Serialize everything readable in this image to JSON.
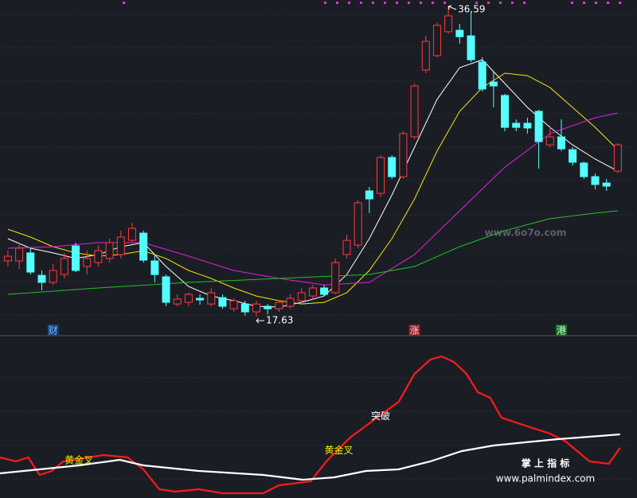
{
  "chart_data": [
    {
      "type": "candlestick",
      "xlim": [
        -0.7,
        55.7
      ],
      "ylim": [
        16.57,
        36.98
      ],
      "up_color": "#ff3b3b",
      "down_color": "#54ffff",
      "open": [
        21.04,
        21.04,
        21.53,
        20.16,
        19.73,
        20.21,
        21.96,
        20.7,
        20.94,
        21.19,
        21.43,
        22.3,
        22.74,
        21.04,
        20.07,
        18.41,
        18.51,
        18.76,
        18.41,
        18.8,
        18.12,
        18.41,
        17.93,
        18.27,
        18.12,
        18.27,
        18.61,
        18.9,
        19.39,
        19.1,
        21.43,
        22.01,
        25.32,
        25.17,
        27.36,
        26.19,
        28.62,
        32.7,
        33.58,
        35.04,
        35.13,
        34.79,
        33.19,
        31.97,
        31.15,
        29.45,
        29.45,
        30.18,
        28.13,
        28.62,
        27.84,
        27.02,
        26.19,
        25.8,
        26.53
      ],
      "high": [
        21.67,
        22.16,
        21.82,
        20.46,
        20.85,
        21.53,
        22.16,
        21.67,
        22.01,
        22.4,
        22.89,
        23.37,
        22.89,
        21.43,
        20.21,
        19.0,
        19.1,
        19.0,
        19.39,
        19.0,
        18.76,
        18.61,
        18.61,
        18.41,
        18.66,
        19.0,
        19.39,
        19.58,
        19.58,
        21.19,
        22.64,
        24.73,
        25.56,
        27.5,
        27.5,
        28.96,
        31.88,
        34.79,
        35.62,
        36.59,
        35.52,
        36.25,
        33.48,
        32.61,
        31.25,
        29.69,
        29.79,
        30.27,
        29.3,
        29.69,
        27.99,
        27.11,
        26.39,
        26.05,
        28.23
      ],
      "low": [
        20.7,
        20.55,
        20.21,
        19.24,
        19.58,
        19.97,
        20.36,
        20.21,
        20.7,
        20.94,
        21.19,
        22.16,
        20.94,
        19.73,
        18.27,
        18.27,
        18.27,
        18.37,
        18.27,
        18.12,
        17.93,
        17.69,
        17.63,
        17.78,
        17.93,
        18.12,
        18.41,
        18.71,
        18.9,
        19.0,
        21.19,
        21.82,
        23.96,
        24.93,
        26.05,
        26.05,
        28.48,
        32.51,
        33.48,
        34.94,
        34.31,
        33.19,
        31.39,
        30.42,
        28.96,
        28.96,
        28.82,
        26.68,
        27.99,
        27.75,
        26.87,
        26.05,
        25.41,
        25.32,
        26.39
      ],
      "close": [
        21.33,
        21.82,
        20.36,
        19.73,
        20.46,
        21.19,
        20.46,
        21.19,
        21.67,
        22.16,
        22.5,
        23.03,
        21.09,
        20.21,
        18.51,
        18.71,
        19.0,
        18.66,
        19.1,
        18.27,
        18.61,
        17.93,
        18.41,
        18.12,
        18.51,
        18.76,
        19.1,
        19.39,
        19.0,
        20.94,
        22.3,
        24.59,
        24.83,
        27.36,
        26.19,
        28.82,
        31.73,
        34.45,
        35.43,
        36.01,
        34.74,
        33.33,
        31.54,
        31.73,
        29.2,
        29.2,
        29.16,
        28.33,
        28.62,
        27.89,
        27.07,
        26.19,
        25.71,
        25.61,
        28.13
      ],
      "events": [
        null,
        null,
        null,
        null,
        {
          "label": "财",
          "color": "#6fb7ff",
          "bg": "#1d3f6e"
        },
        null,
        null,
        null,
        null,
        null,
        null,
        null,
        null,
        null,
        null,
        null,
        null,
        null,
        null,
        null,
        null,
        null,
        null,
        null,
        null,
        null,
        null,
        null,
        null,
        null,
        null,
        null,
        null,
        null,
        null,
        null,
        {
          "label": "涨",
          "color": "#ffd0d0",
          "bg": "#8a1f2a"
        },
        null,
        null,
        null,
        null,
        null,
        null,
        null,
        null,
        null,
        null,
        null,
        null,
        {
          "label": "港",
          "color": "#c8ffc8",
          "bg": "#1d6e2a"
        },
        null,
        null,
        null,
        null,
        null
      ],
      "moving_averages": [
        {
          "color": "#ffffff",
          "x": [
            0,
            2,
            4,
            6,
            8,
            10,
            12,
            14,
            16,
            18,
            20,
            22,
            24,
            26,
            28,
            30,
            32,
            34,
            36,
            38,
            40,
            42,
            44,
            46,
            48,
            50,
            52,
            54
          ],
          "values": [
            22.4,
            21.82,
            21.53,
            21.19,
            21.43,
            21.91,
            22.16,
            20.7,
            19.48,
            18.9,
            18.61,
            18.27,
            18.22,
            18.51,
            18.9,
            20.21,
            22.4,
            25.07,
            27.99,
            30.91,
            32.85,
            33.33,
            31.88,
            30.42,
            29.2,
            28.13,
            27.26,
            26.53
          ]
        },
        {
          "color": "#f2e600",
          "x": [
            0,
            2,
            4,
            6,
            8,
            10,
            12,
            14,
            16,
            18,
            20,
            22,
            24,
            26,
            28,
            30,
            32,
            34,
            36,
            38,
            40,
            42,
            44,
            46,
            48,
            50,
            52,
            54
          ],
          "values": [
            22.98,
            22.5,
            21.91,
            21.53,
            21.33,
            21.43,
            21.67,
            21.19,
            20.46,
            19.97,
            19.39,
            18.9,
            18.61,
            18.41,
            18.51,
            19.1,
            20.46,
            22.4,
            24.83,
            27.75,
            30.18,
            31.63,
            32.51,
            32.36,
            31.63,
            30.42,
            29.2,
            27.84
          ]
        },
        {
          "color": "#e020e0",
          "x": [
            0,
            4,
            8,
            12,
            16,
            20,
            24,
            28,
            32,
            36,
            40,
            44,
            48,
            52,
            54
          ],
          "values": [
            21.82,
            21.91,
            22.16,
            22.16,
            21.33,
            20.46,
            19.97,
            19.58,
            19.73,
            21.43,
            24.1,
            26.77,
            28.82,
            29.79,
            30.08
          ]
        },
        {
          "color": "#22c022",
          "x": [
            0,
            8,
            16,
            24,
            32,
            36,
            40,
            44,
            48,
            52,
            54
          ],
          "values": [
            19.0,
            19.39,
            19.73,
            19.97,
            20.21,
            20.7,
            21.91,
            22.89,
            23.62,
            23.96,
            24.1
          ]
        }
      ],
      "watermark": "www.6o7o.com"
    },
    {
      "type": "line",
      "xlim": [
        -0.7,
        55.7
      ],
      "ylim": [
        0,
        100
      ],
      "series": [
        {
          "color": "#ff1a1a",
          "x": [
            -0.7,
            0.7,
            1.8,
            2.8,
            3.9,
            4.9,
            6.3,
            8.5,
            10.6,
            12.0,
            13.4,
            14.8,
            16.9,
            19.0,
            22.6,
            24.0,
            26.8,
            28.2,
            30.3,
            32.4,
            34.6,
            36.0,
            37.4,
            38.4,
            39.5,
            40.6,
            41.6,
            42.7,
            43.7,
            45.8,
            48.0,
            49.4,
            51.5,
            53.2,
            54.2
          ],
          "values": [
            25.5,
            23,
            25.5,
            14.5,
            17,
            23,
            24.5,
            27,
            25.5,
            18,
            5.5,
            4,
            5.5,
            3,
            3,
            8,
            10.5,
            23,
            38,
            49,
            60.5,
            78,
            87,
            89,
            85.5,
            78,
            66.5,
            63,
            50.5,
            45.5,
            40.5,
            35.5,
            23,
            21.5,
            31.5
          ]
        },
        {
          "color": "#ffffff",
          "x": [
            -0.7,
            2.8,
            6.3,
            9.9,
            12.0,
            16.9,
            22.6,
            26.1,
            28.9,
            31.7,
            34.6,
            37.4,
            40.2,
            43.0,
            45.8,
            48.7,
            51.5,
            54.2
          ],
          "values": [
            15.5,
            18,
            20.5,
            24,
            20.5,
            17,
            14.5,
            11.5,
            13,
            17,
            18,
            23,
            29.5,
            33,
            35,
            37,
            38.5,
            40
          ]
        }
      ],
      "annotations": [
        {
          "text": "黄金叉",
          "x": 6.3,
          "color": "#f2e600"
        },
        {
          "text": "黄金叉",
          "x": 29.3,
          "color": "#f2e600"
        },
        {
          "text": "突破",
          "x": 33.0,
          "color": "#ffffff"
        }
      ],
      "watermark": [
        "掌 上 指 标",
        "www.palmindex.com"
      ]
    }
  ]
}
